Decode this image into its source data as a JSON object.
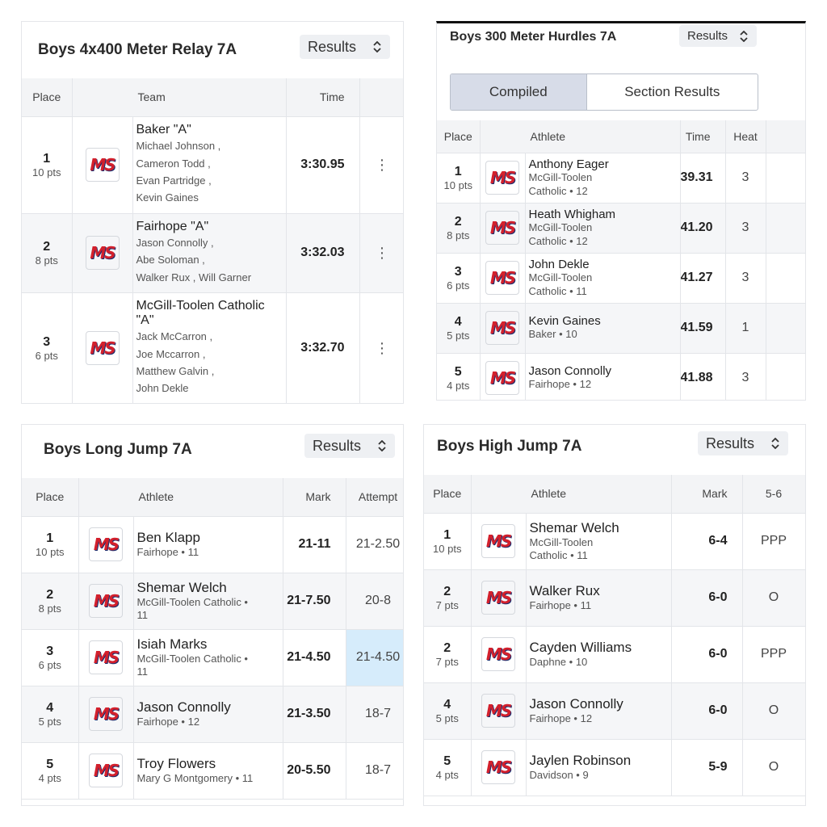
{
  "logo": "MS",
  "panels": [
    {
      "title": "Boys 4x400 Meter Relay 7A",
      "dropdown": "Results",
      "columns": [
        "Place",
        "Team",
        "Time"
      ],
      "rows": [
        {
          "place": "1",
          "points": "10 pts",
          "name": "Baker \"A\"",
          "details": [
            "Michael Johnson ,",
            "Cameron Todd ,",
            "Evan Partridge ,",
            "Kevin Gaines"
          ],
          "result": "3:30.95"
        },
        {
          "place": "2",
          "points": "8 pts",
          "name": "Fairhope \"A\"",
          "details": [
            "Jason Connolly ,",
            "Abe Soloman ,",
            "Walker Rux ,  Will Garner"
          ],
          "result": "3:32.03"
        },
        {
          "place": "3",
          "points": "6 pts",
          "name": "McGill-Toolen Catholic \"A\"",
          "details": [
            "Jack McCarron ,",
            "Joe Mccarron ,",
            "Matthew Galvin ,",
            "John Dekle"
          ],
          "result": "3:32.70"
        }
      ]
    },
    {
      "title": "Boys 300 Meter Hurdles 7A",
      "dropdown": "Results",
      "tabs": [
        "Compiled",
        "Section Results"
      ],
      "columns": [
        "Place",
        "Athlete",
        "Time",
        "Heat"
      ],
      "rows": [
        {
          "place": "1",
          "points": "10 pts",
          "name": "Anthony Eager",
          "details": [
            "McGill-Toolen Catholic • 12"
          ],
          "result": "39.31",
          "extra": "3"
        },
        {
          "place": "2",
          "points": "8 pts",
          "name": "Heath Whigham",
          "details": [
            "McGill-Toolen Catholic • 12"
          ],
          "result": "41.20",
          "extra": "3"
        },
        {
          "place": "3",
          "points": "6 pts",
          "name": "John Dekle",
          "details": [
            "McGill-Toolen Catholic • 11"
          ],
          "result": "41.27",
          "extra": "3"
        },
        {
          "place": "4",
          "points": "5 pts",
          "name": "Kevin Gaines",
          "details": [
            "Baker • 10"
          ],
          "result": "41.59",
          "extra": "1"
        },
        {
          "place": "5",
          "points": "4 pts",
          "name": "Jason Connolly",
          "details": [
            "Fairhope • 12"
          ],
          "result": "41.88",
          "extra": "3"
        }
      ]
    },
    {
      "title": "Boys Long Jump 7A",
      "dropdown": "Results",
      "columns": [
        "Place",
        "Athlete",
        "Mark",
        "Attempt"
      ],
      "rows": [
        {
          "place": "1",
          "points": "10 pts",
          "name": "Ben Klapp",
          "details": [
            "Fairhope • 11"
          ],
          "result": "21-11",
          "extra": "21-2.50"
        },
        {
          "place": "2",
          "points": "8 pts",
          "name": "Shemar Welch",
          "details": [
            "McGill-Toolen Catholic • 11"
          ],
          "result": "21-7.50",
          "extra": "20-8"
        },
        {
          "place": "3",
          "points": "6 pts",
          "name": "Isiah Marks",
          "details": [
            "McGill-Toolen Catholic • 11"
          ],
          "result": "21-4.50",
          "extra": "21-4.50"
        },
        {
          "place": "4",
          "points": "5 pts",
          "name": "Jason Connolly",
          "details": [
            "Fairhope • 12"
          ],
          "result": "21-3.50",
          "extra": "18-7"
        },
        {
          "place": "5",
          "points": "4 pts",
          "name": "Troy Flowers",
          "details": [
            "Mary G Montgomery • 11"
          ],
          "result": "20-5.50",
          "extra": "18-7"
        }
      ]
    },
    {
      "title": "Boys High Jump 7A",
      "dropdown": "Results",
      "columns": [
        "Place",
        "Athlete",
        "Mark",
        "5-6"
      ],
      "rows": [
        {
          "place": "1",
          "points": "10 pts",
          "name": "Shemar Welch",
          "details": [
            "McGill-Toolen Catholic • 11"
          ],
          "result": "6-4",
          "extra": "PPP"
        },
        {
          "place": "2",
          "points": "7 pts",
          "name": "Walker Rux",
          "details": [
            "Fairhope • 11"
          ],
          "result": "6-0",
          "extra": "O"
        },
        {
          "place": "2",
          "points": "7 pts",
          "name": "Cayden Williams",
          "details": [
            "Daphne • 10"
          ],
          "result": "6-0",
          "extra": "PPP"
        },
        {
          "place": "4",
          "points": "5 pts",
          "name": "Jason Connolly",
          "details": [
            "Fairhope • 12"
          ],
          "result": "6-0",
          "extra": "O"
        },
        {
          "place": "5",
          "points": "4 pts",
          "name": "Jaylen Robinson",
          "details": [
            "Davidson • 9"
          ],
          "result": "5-9",
          "extra": "O"
        }
      ]
    }
  ]
}
